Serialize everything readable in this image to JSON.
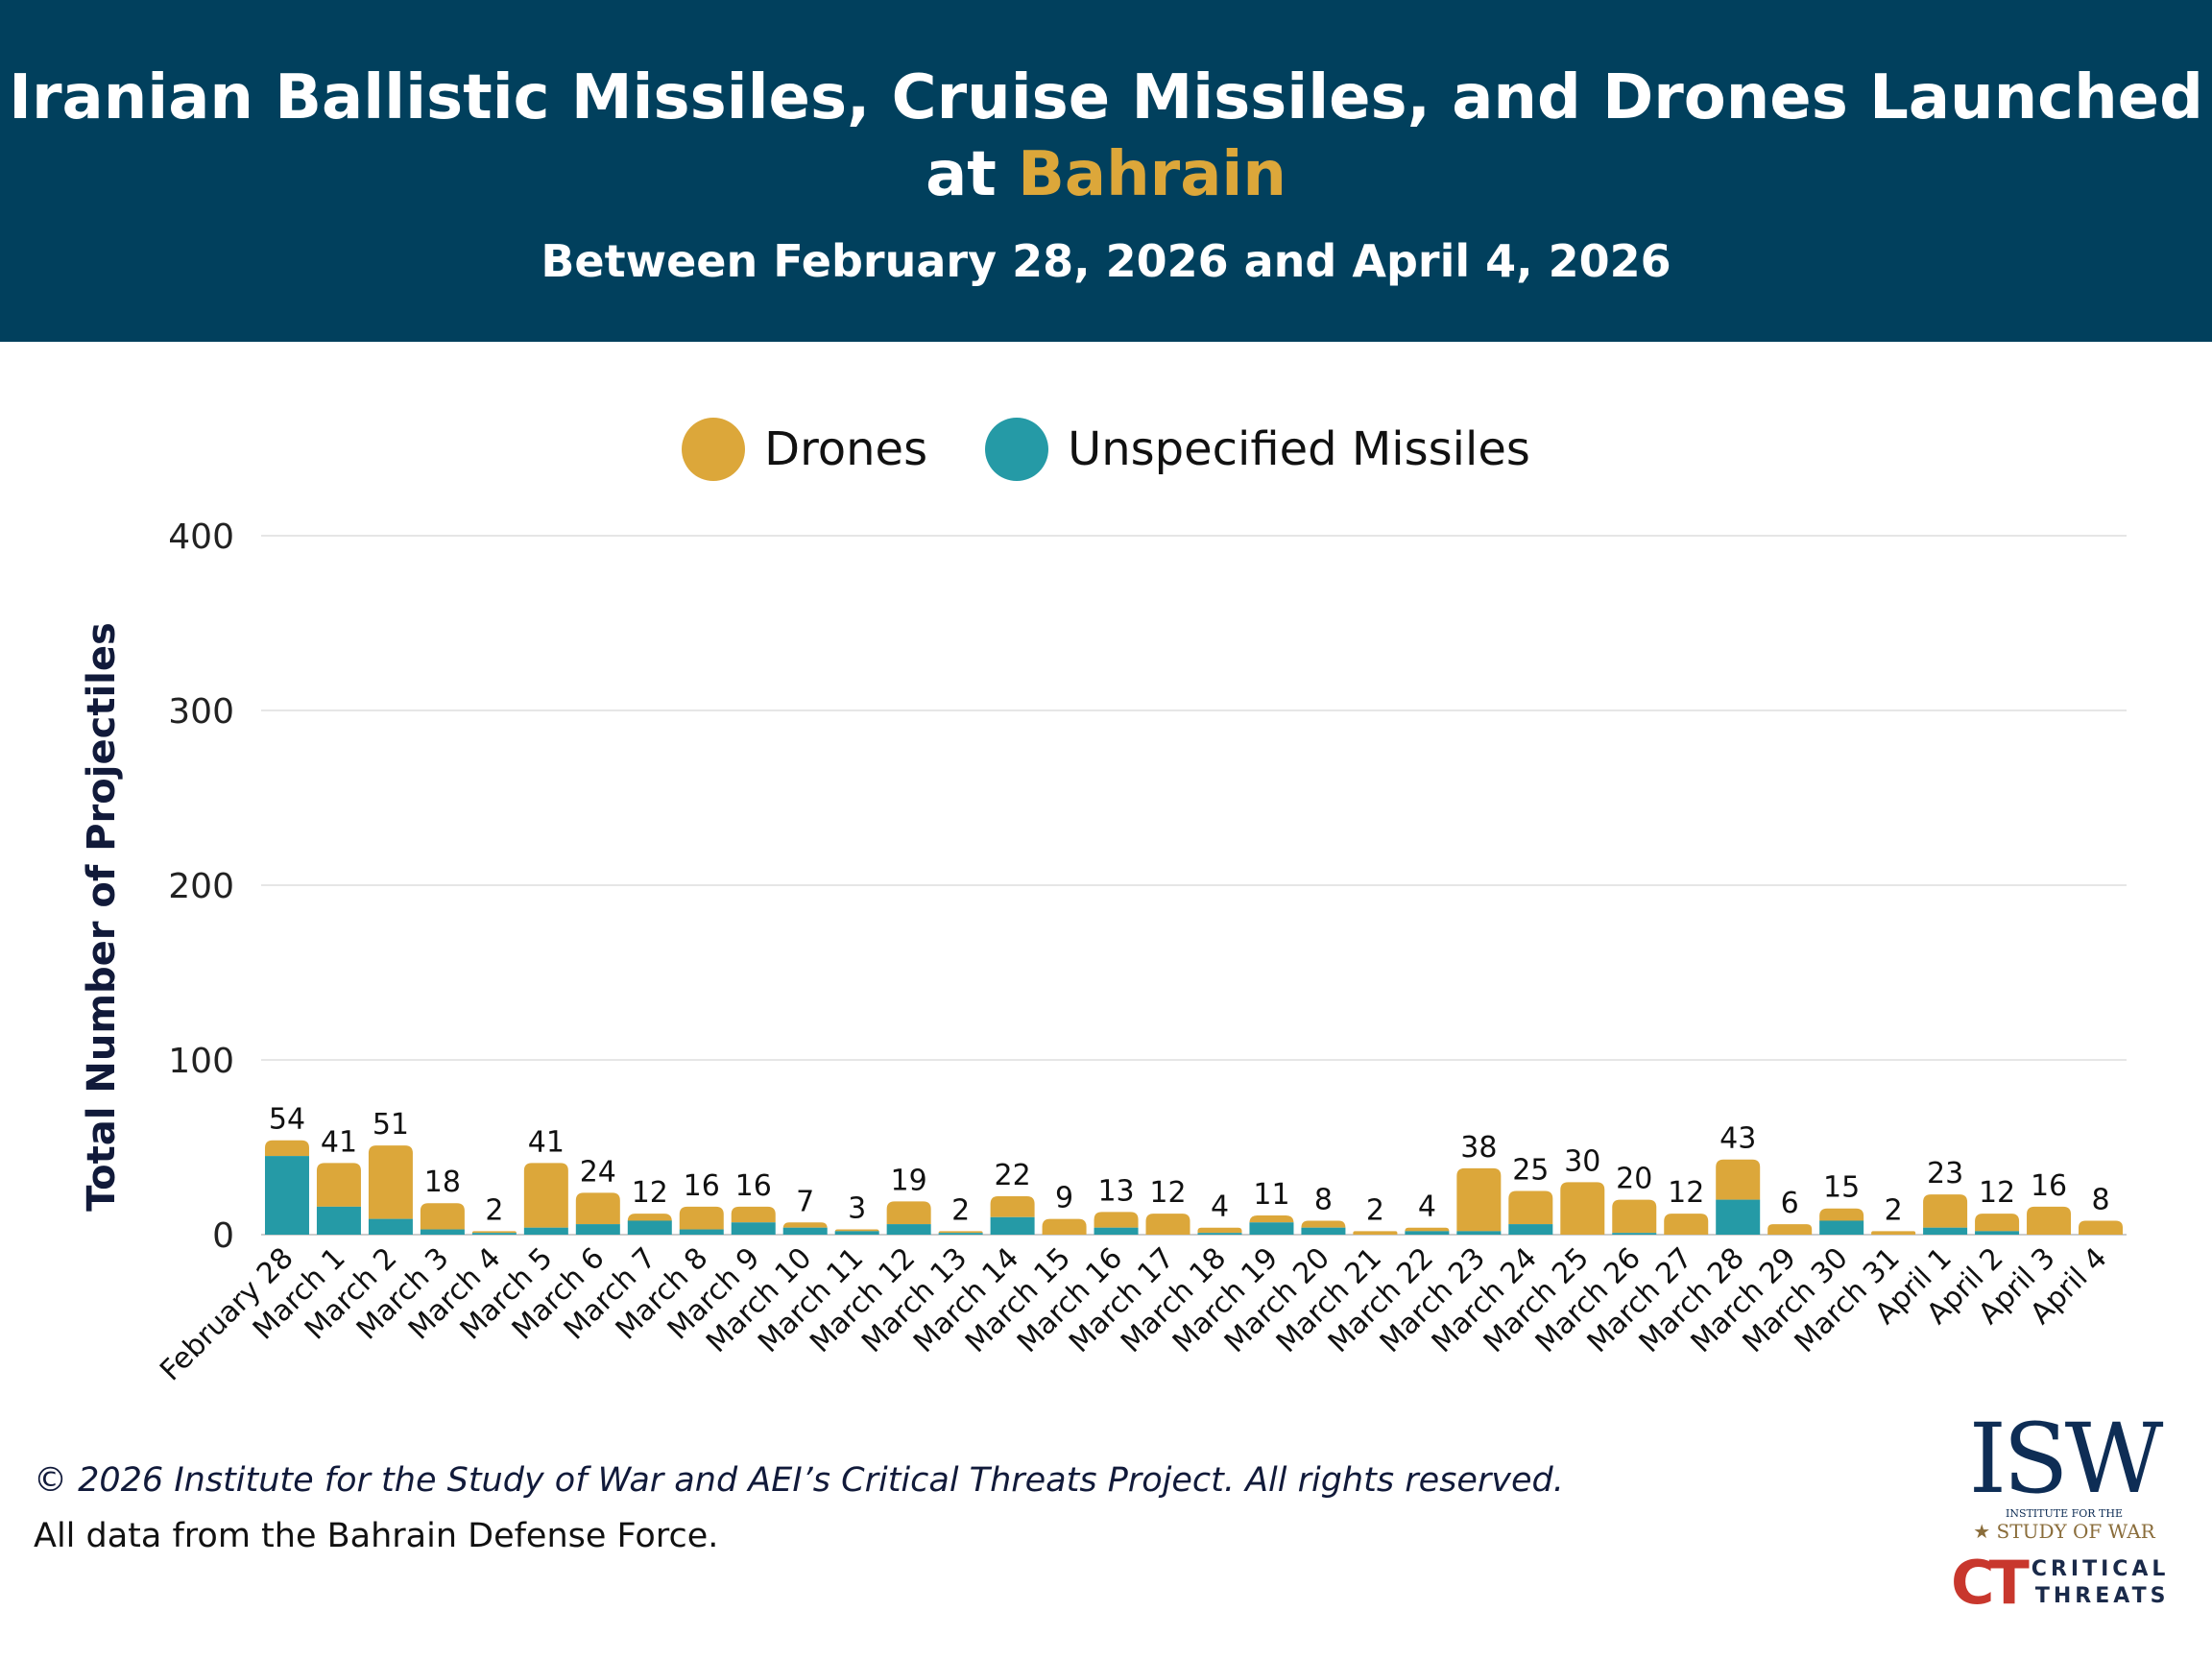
{
  "header": {
    "title_part1": "Iranian Ballistic Missiles, Cruise Missiles, and Drones Launched",
    "title_part2_prefix": "at ",
    "title_highlight": "Bahrain",
    "subtitle": "Between February 28, 2026 and April 4, 2026"
  },
  "colors": {
    "header_bg": "#01405d",
    "drones": "#dca73a",
    "missiles": "#259aa6",
    "highlight": "#dca73a"
  },
  "footer": {
    "copyright": "© 2026 Institute for the Study of War and AEI’s Critical Threats Project. All rights reserved.",
    "source": "All data from the Bahrain Defense Force."
  },
  "logos": {
    "isw": "ISW",
    "isw_sub1": "INSTITUTE FOR THE",
    "isw_sub2": "STUDY OF WAR",
    "ct_mark": "CT",
    "ct_line1": "CRITICAL",
    "ct_line2": "THREATS"
  },
  "chart_data": {
    "type": "bar",
    "stacked": true,
    "ylabel": "Total Number of Projectiles",
    "ylim": [
      0,
      400
    ],
    "yticks": [
      0,
      100,
      200,
      300,
      400
    ],
    "grid": true,
    "legend_position": "top-center",
    "categories": [
      "February 28",
      "March 1",
      "March 2",
      "March 3",
      "March 4",
      "March 5",
      "March 6",
      "March 7",
      "March 8",
      "March 9",
      "March 10",
      "March 11",
      "March 12",
      "March 13",
      "March 14",
      "March 15",
      "March 16",
      "March 17",
      "March 18",
      "March 19",
      "March 20",
      "March 21",
      "March 22",
      "March 23",
      "March 24",
      "March 25",
      "March 26",
      "March 27",
      "March 28",
      "March 29",
      "March 30",
      "March 31",
      "April 1",
      "April 2",
      "April 3",
      "April 4"
    ],
    "totals": [
      54,
      41,
      51,
      18,
      2,
      41,
      24,
      12,
      16,
      16,
      7,
      3,
      19,
      2,
      22,
      9,
      13,
      12,
      4,
      11,
      8,
      2,
      4,
      38,
      25,
      30,
      20,
      12,
      43,
      6,
      15,
      2,
      23,
      12,
      16,
      8
    ],
    "series": [
      {
        "name": "Unspecified Missiles",
        "color": "#259aa6",
        "values": [
          45,
          16,
          9,
          3,
          1,
          4,
          6,
          8,
          3,
          7,
          4,
          2,
          6,
          1,
          10,
          0,
          4,
          0,
          1,
          7,
          4,
          0,
          2,
          2,
          6,
          0,
          1,
          0,
          20,
          0,
          8,
          0,
          4,
          2,
          0,
          0
        ]
      },
      {
        "name": "Drones",
        "color": "#dca73a",
        "values": [
          9,
          25,
          42,
          15,
          1,
          37,
          18,
          4,
          13,
          9,
          3,
          1,
          13,
          1,
          12,
          9,
          9,
          12,
          3,
          4,
          4,
          2,
          2,
          36,
          19,
          30,
          19,
          12,
          23,
          6,
          7,
          2,
          19,
          10,
          16,
          8
        ]
      }
    ],
    "legend": [
      "Drones",
      "Unspecified Missiles"
    ]
  }
}
